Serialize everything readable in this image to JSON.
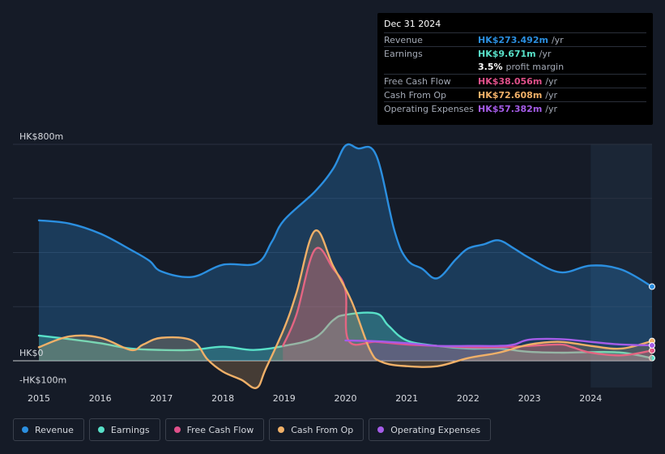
{
  "tooltip": {
    "date": "Dec 31 2024",
    "rows": [
      {
        "label": "Revenue",
        "value": "HK$273.492m",
        "unit": "/yr",
        "color": "#2b8fe0"
      },
      {
        "label": "Earnings",
        "value": "HK$9.671m",
        "unit": "/yr",
        "color": "#58e0c8"
      },
      {
        "label": "",
        "value": "3.5%",
        "unit": "profit margin",
        "color": "#ffffff"
      },
      {
        "label": "Free Cash Flow",
        "value": "HK$38.056m",
        "unit": "/yr",
        "color": "#e0508a"
      },
      {
        "label": "Cash From Op",
        "value": "HK$72.608m",
        "unit": "/yr",
        "color": "#f0b068"
      },
      {
        "label": "Operating Expenses",
        "value": "HK$57.382m",
        "unit": "/yr",
        "color": "#a55ce8"
      }
    ]
  },
  "legend": [
    {
      "label": "Revenue",
      "color": "#2b8fe0"
    },
    {
      "label": "Earnings",
      "color": "#58e0c8"
    },
    {
      "label": "Free Cash Flow",
      "color": "#e0508a"
    },
    {
      "label": "Cash From Op",
      "color": "#f0b068"
    },
    {
      "label": "Operating Expenses",
      "color": "#a55ce8"
    }
  ],
  "chart_data": {
    "type": "area",
    "title": "",
    "xlabel": "",
    "ylabel": "",
    "y_axis_labels": [
      {
        "label": "HK$800m",
        "value": 800
      },
      {
        "label": "HK$0",
        "value": 0
      },
      {
        "label": "-HK$100m",
        "value": -100
      }
    ],
    "ylim": [
      -100,
      800
    ],
    "xlim": [
      2014.95,
      2025.0
    ],
    "x_ticks": [
      2015,
      2016,
      2017,
      2018,
      2019,
      2020,
      2021,
      2022,
      2023,
      2024
    ],
    "forecast_start": 2024.0,
    "series": [
      {
        "name": "Revenue",
        "color": "#2b8fe0",
        "fill": true,
        "points": [
          [
            2015.0,
            519
          ],
          [
            2015.5,
            507
          ],
          [
            2016.0,
            470
          ],
          [
            2016.5,
            410
          ],
          [
            2016.8,
            370
          ],
          [
            2017.0,
            330
          ],
          [
            2017.5,
            310
          ],
          [
            2018.0,
            355
          ],
          [
            2018.55,
            360
          ],
          [
            2018.8,
            440
          ],
          [
            2019.0,
            520
          ],
          [
            2019.5,
            625
          ],
          [
            2019.8,
            710
          ],
          [
            2020.0,
            795
          ],
          [
            2020.2,
            785
          ],
          [
            2020.5,
            760
          ],
          [
            2020.8,
            480
          ],
          [
            2021.0,
            375
          ],
          [
            2021.25,
            340
          ],
          [
            2021.5,
            305
          ],
          [
            2021.8,
            375
          ],
          [
            2022.0,
            415
          ],
          [
            2022.25,
            430
          ],
          [
            2022.5,
            445
          ],
          [
            2022.75,
            415
          ],
          [
            2023.0,
            380
          ],
          [
            2023.5,
            327
          ],
          [
            2024.0,
            352
          ],
          [
            2024.5,
            337
          ],
          [
            2025.0,
            274
          ]
        ]
      },
      {
        "name": "Earnings",
        "color": "#58e0c8",
        "fill": true,
        "points": [
          [
            2015.0,
            93
          ],
          [
            2015.5,
            80
          ],
          [
            2016.0,
            65
          ],
          [
            2016.5,
            45
          ],
          [
            2017.0,
            40
          ],
          [
            2017.5,
            40
          ],
          [
            2018.0,
            52
          ],
          [
            2018.5,
            40
          ],
          [
            2019.0,
            55
          ],
          [
            2019.5,
            85
          ],
          [
            2019.8,
            150
          ],
          [
            2020.0,
            170
          ],
          [
            2020.5,
            175
          ],
          [
            2020.7,
            130
          ],
          [
            2021.0,
            75
          ],
          [
            2021.5,
            55
          ],
          [
            2022.0,
            45
          ],
          [
            2022.5,
            45
          ],
          [
            2023.0,
            33
          ],
          [
            2023.5,
            30
          ],
          [
            2024.0,
            32
          ],
          [
            2024.5,
            30
          ],
          [
            2025.0,
            10
          ]
        ]
      },
      {
        "name": "Free Cash Flow",
        "color": "#e0508a",
        "fill": true,
        "points": [
          [
            2018.98,
            55
          ],
          [
            2019.2,
            170
          ],
          [
            2019.5,
            410
          ],
          [
            2019.8,
            340
          ],
          [
            2020.0,
            260
          ],
          [
            2020.05,
            75
          ],
          [
            2020.5,
            70
          ],
          [
            2021.0,
            60
          ],
          [
            2021.5,
            55
          ],
          [
            2022.0,
            50
          ],
          [
            2022.5,
            50
          ],
          [
            2023.0,
            55
          ],
          [
            2023.5,
            60
          ],
          [
            2023.7,
            50
          ],
          [
            2024.0,
            30
          ],
          [
            2024.5,
            20
          ],
          [
            2025.0,
            38
          ]
        ]
      },
      {
        "name": "Cash From Op",
        "color": "#f0b068",
        "fill": true,
        "points": [
          [
            2015.0,
            50
          ],
          [
            2015.5,
            90
          ],
          [
            2016.0,
            85
          ],
          [
            2016.5,
            40
          ],
          [
            2016.7,
            60
          ],
          [
            2017.0,
            85
          ],
          [
            2017.5,
            75
          ],
          [
            2017.75,
            5
          ],
          [
            2018.0,
            -40
          ],
          [
            2018.3,
            -70
          ],
          [
            2018.55,
            -100
          ],
          [
            2018.7,
            -30
          ],
          [
            2019.0,
            120
          ],
          [
            2019.2,
            250
          ],
          [
            2019.5,
            480
          ],
          [
            2019.8,
            350
          ],
          [
            2020.1,
            220
          ],
          [
            2020.4,
            40
          ],
          [
            2020.6,
            -5
          ],
          [
            2021.0,
            -20
          ],
          [
            2021.5,
            -20
          ],
          [
            2022.0,
            10
          ],
          [
            2022.5,
            30
          ],
          [
            2023.0,
            60
          ],
          [
            2023.5,
            70
          ],
          [
            2024.0,
            55
          ],
          [
            2024.5,
            45
          ],
          [
            2025.0,
            73
          ]
        ]
      },
      {
        "name": "Operating Expenses",
        "color": "#a55ce8",
        "fill": false,
        "points": [
          [
            2020.0,
            75
          ],
          [
            2020.5,
            72
          ],
          [
            2021.0,
            65
          ],
          [
            2021.5,
            55
          ],
          [
            2022.0,
            55
          ],
          [
            2022.5,
            55
          ],
          [
            2022.75,
            60
          ],
          [
            2023.0,
            78
          ],
          [
            2023.5,
            80
          ],
          [
            2024.0,
            70
          ],
          [
            2024.5,
            60
          ],
          [
            2025.0,
            57
          ]
        ]
      }
    ]
  }
}
